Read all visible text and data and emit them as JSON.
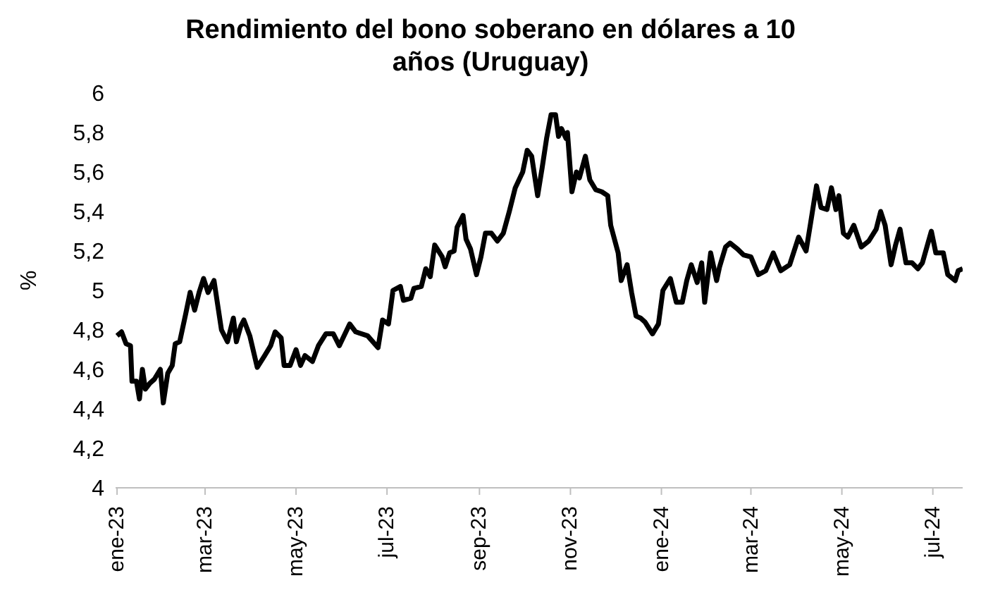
{
  "chart_data": {
    "type": "line",
    "title": "Rendimiento del bono soberano en dólares a 10 años (Uruguay)",
    "ylabel": "%",
    "x": [
      "2023-01-01",
      "2023-01-04",
      "2023-01-07",
      "2023-01-10",
      "2023-01-11",
      "2023-01-14",
      "2023-01-16",
      "2023-01-18",
      "2023-01-20",
      "2023-01-23",
      "2023-01-26",
      "2023-01-30",
      "2023-02-01",
      "2023-02-04",
      "2023-02-07",
      "2023-02-09",
      "2023-02-12",
      "2023-02-16",
      "2023-02-19",
      "2023-02-22",
      "2023-02-25",
      "2023-02-28",
      "2023-03-03",
      "2023-03-07",
      "2023-03-10",
      "2023-03-12",
      "2023-03-16",
      "2023-03-20",
      "2023-03-22",
      "2023-03-25",
      "2023-03-27",
      "2023-03-31",
      "2023-04-05",
      "2023-04-10",
      "2023-04-14",
      "2023-04-17",
      "2023-04-21",
      "2023-04-23",
      "2023-04-27",
      "2023-05-01",
      "2023-05-04",
      "2023-05-07",
      "2023-05-12",
      "2023-05-16",
      "2023-05-21",
      "2023-05-26",
      "2023-05-30",
      "2023-06-06",
      "2023-06-10",
      "2023-06-18",
      "2023-06-25",
      "2023-06-28",
      "2023-07-02",
      "2023-07-05",
      "2023-07-10",
      "2023-07-12",
      "2023-07-17",
      "2023-07-19",
      "2023-07-24",
      "2023-07-27",
      "2023-07-30",
      "2023-08-02",
      "2023-08-07",
      "2023-08-09",
      "2023-08-12",
      "2023-08-15",
      "2023-08-17",
      "2023-08-21",
      "2023-08-23",
      "2023-08-26",
      "2023-08-30",
      "2023-09-02",
      "2023-09-05",
      "2023-09-09",
      "2023-09-13",
      "2023-09-17",
      "2023-09-21",
      "2023-09-25",
      "2023-09-30",
      "2023-10-03",
      "2023-10-06",
      "2023-10-10",
      "2023-10-13",
      "2023-10-16",
      "2023-10-19",
      "2023-10-22",
      "2023-10-24",
      "2023-10-26",
      "2023-10-29",
      "2023-10-30",
      "2023-11-02",
      "2023-11-05",
      "2023-11-07",
      "2023-11-11",
      "2023-11-14",
      "2023-11-18",
      "2023-11-22",
      "2023-11-26",
      "2023-11-28",
      "2023-12-03",
      "2023-12-05",
      "2023-12-09",
      "2023-12-12",
      "2023-12-15",
      "2023-12-18",
      "2023-12-21",
      "2023-12-26",
      "2023-12-30",
      "2024-01-02",
      "2024-01-07",
      "2024-01-11",
      "2024-01-15",
      "2024-01-18",
      "2024-01-21",
      "2024-01-25",
      "2024-01-28",
      "2024-01-30",
      "2024-02-03",
      "2024-02-07",
      "2024-02-09",
      "2024-02-13",
      "2024-02-16",
      "2024-02-21",
      "2024-02-25",
      "2024-03-01",
      "2024-03-06",
      "2024-03-11",
      "2024-03-16",
      "2024-03-21",
      "2024-03-27",
      "2024-04-02",
      "2024-04-07",
      "2024-04-10",
      "2024-04-14",
      "2024-04-17",
      "2024-04-21",
      "2024-04-24",
      "2024-04-27",
      "2024-04-29",
      "2024-05-02",
      "2024-05-05",
      "2024-05-09",
      "2024-05-14",
      "2024-05-19",
      "2024-05-24",
      "2024-05-27",
      "2024-05-30",
      "2024-06-03",
      "2024-06-06",
      "2024-06-09",
      "2024-06-13",
      "2024-06-17",
      "2024-06-21",
      "2024-06-24",
      "2024-06-30",
      "2024-07-03",
      "2024-07-08",
      "2024-07-11",
      "2024-07-16",
      "2024-07-18",
      "2024-07-21"
    ],
    "series": [
      {
        "color": "#000000",
        "values": [
          4.77,
          4.79,
          4.73,
          4.72,
          4.54,
          4.54,
          4.45,
          4.6,
          4.5,
          4.53,
          4.55,
          4.6,
          4.43,
          4.58,
          4.62,
          4.73,
          4.74,
          4.88,
          4.99,
          4.9,
          4.99,
          5.06,
          4.99,
          5.05,
          4.9,
          4.8,
          4.74,
          4.86,
          4.74,
          4.82,
          4.85,
          4.77,
          4.61,
          4.67,
          4.72,
          4.79,
          4.76,
          4.62,
          4.62,
          4.7,
          4.62,
          4.67,
          4.64,
          4.72,
          4.78,
          4.78,
          4.72,
          4.83,
          4.79,
          4.77,
          4.71,
          4.85,
          4.83,
          5.0,
          5.02,
          4.95,
          4.96,
          5.01,
          5.02,
          5.11,
          5.07,
          5.23,
          5.17,
          5.12,
          5.19,
          5.2,
          5.32,
          5.38,
          5.26,
          5.21,
          5.08,
          5.17,
          5.29,
          5.29,
          5.25,
          5.29,
          5.4,
          5.52,
          5.6,
          5.71,
          5.68,
          5.48,
          5.62,
          5.77,
          5.89,
          5.89,
          5.78,
          5.82,
          5.77,
          5.8,
          5.5,
          5.6,
          5.57,
          5.68,
          5.56,
          5.51,
          5.5,
          5.48,
          5.33,
          5.19,
          5.05,
          5.13,
          4.99,
          4.87,
          4.86,
          4.84,
          4.78,
          4.83,
          5.0,
          5.06,
          4.94,
          4.94,
          5.05,
          5.13,
          5.04,
          5.14,
          4.94,
          5.19,
          5.05,
          5.12,
          5.22,
          5.24,
          5.21,
          5.18,
          5.17,
          5.08,
          5.1,
          5.19,
          5.1,
          5.13,
          5.27,
          5.2,
          5.34,
          5.53,
          5.42,
          5.41,
          5.52,
          5.41,
          5.48,
          5.29,
          5.27,
          5.33,
          5.22,
          5.25,
          5.31,
          5.4,
          5.33,
          5.13,
          5.23,
          5.31,
          5.14,
          5.14,
          5.11,
          5.14,
          5.3,
          5.19,
          5.19,
          5.08,
          5.05,
          5.1,
          5.11
        ]
      }
    ],
    "xlim": [
      "2022-12-31",
      "2024-07-21"
    ],
    "xticks": [
      {
        "value": "2023-01-01",
        "label": "ene-23"
      },
      {
        "value": "2023-03-01",
        "label": "mar-23"
      },
      {
        "value": "2023-05-01",
        "label": "may-23"
      },
      {
        "value": "2023-07-01",
        "label": "jul-23"
      },
      {
        "value": "2023-09-01",
        "label": "sep-23"
      },
      {
        "value": "2023-11-01",
        "label": "nov-23"
      },
      {
        "value": "2024-01-01",
        "label": "ene-24"
      },
      {
        "value": "2024-03-01",
        "label": "mar-24"
      },
      {
        "value": "2024-05-01",
        "label": "may-24"
      },
      {
        "value": "2024-07-01",
        "label": "jul-24"
      }
    ],
    "ylim": [
      4,
      6
    ],
    "yticks": [
      4,
      {
        "value": 4.2,
        "label": "4,2"
      },
      {
        "value": 4.4,
        "label": "4,4"
      },
      {
        "value": 4.6,
        "label": "4,6"
      },
      {
        "value": 4.8,
        "label": "4,8"
      },
      5,
      {
        "value": 5.2,
        "label": "5,2"
      },
      {
        "value": 5.4,
        "label": "5,4"
      },
      {
        "value": 5.6,
        "label": "5,6"
      },
      {
        "value": 5.8,
        "label": "5,8"
      },
      6
    ],
    "grid": false,
    "legend": false,
    "marker": "none",
    "line_style": "solid"
  }
}
